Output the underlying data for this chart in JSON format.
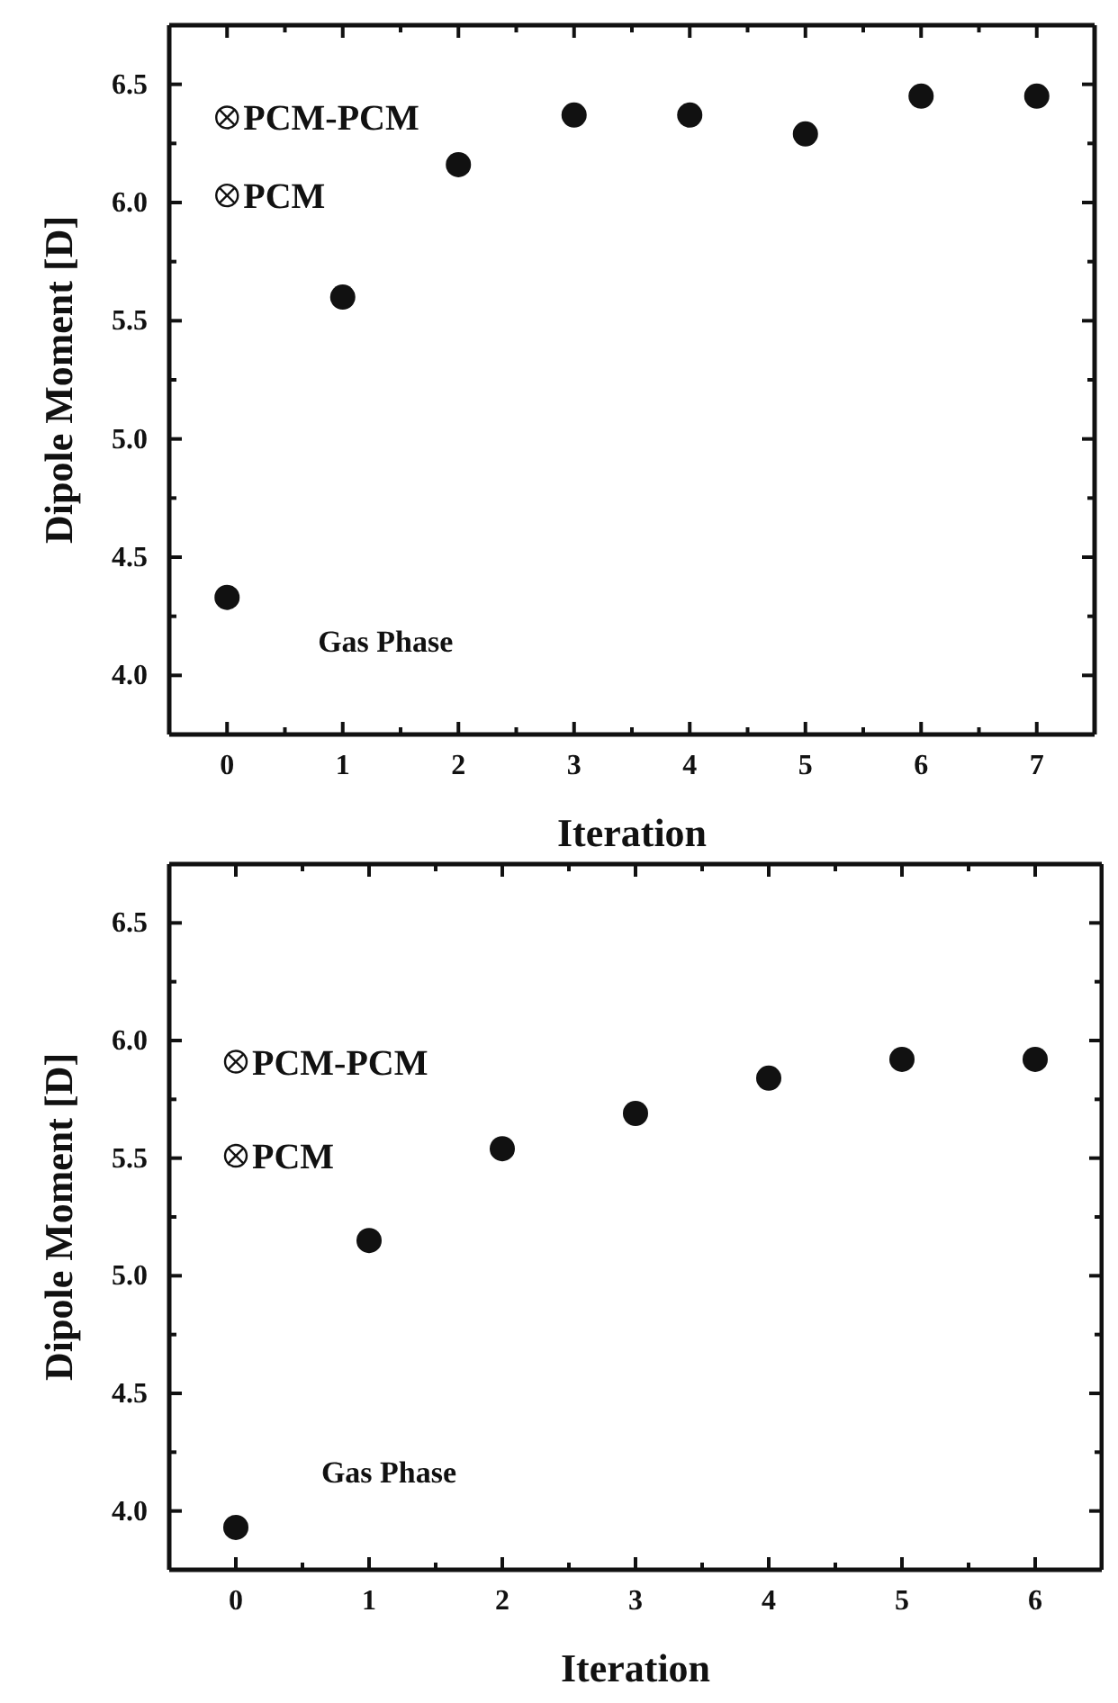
{
  "chart_data": [
    {
      "type": "scatter",
      "xlabel": "Iteration",
      "ylabel": "Dipole Moment [D]",
      "xlim": [
        -0.5,
        7.5
      ],
      "ylim": [
        3.75,
        6.75
      ],
      "xticks": [
        0,
        {
          "value": 0.5,
          "label": null
        },
        1,
        {
          "value": 1.5,
          "label": null
        },
        2,
        {
          "value": 2.5,
          "label": null
        },
        3,
        {
          "value": 3.5,
          "label": null
        },
        4,
        {
          "value": 4.5,
          "label": null
        },
        5,
        {
          "value": 5.5,
          "label": null
        },
        6,
        {
          "value": 6.5,
          "label": null
        },
        7
      ],
      "yticks": [
        {
          "value": 4,
          "label": "4.0"
        },
        {
          "value": 4.25,
          "label": null
        },
        4.5,
        {
          "value": 4.75,
          "label": null
        },
        {
          "value": 5,
          "label": "5.0"
        },
        {
          "value": 5.25,
          "label": null
        },
        5.5,
        {
          "value": 5.75,
          "label": null
        },
        {
          "value": 6,
          "label": "6.0"
        },
        {
          "value": 6.25,
          "label": null
        },
        6.5
      ],
      "series": [
        {
          "color": "#111111",
          "marker": "circle",
          "x": [
            0,
            1,
            2,
            3,
            4,
            5,
            6,
            7
          ],
          "values": [
            4.33,
            5.6,
            6.16,
            6.37,
            6.37,
            6.29,
            6.45,
            6.45
          ]
        },
        {
          "name": "PCM-PCM",
          "color": "#111111",
          "x": [
            0
          ],
          "values": [
            6.36
          ]
        },
        {
          "name": "PCM",
          "color": "#111111",
          "x": [
            0
          ],
          "values": [
            6.03
          ]
        }
      ],
      "annotations": [
        "Gas Phase"
      ],
      "legend": "top left"
    },
    {
      "type": "scatter",
      "xlabel": "Iteration",
      "ylabel": "Dipole Moment [D]",
      "xlim": [
        -0.5,
        6.5
      ],
      "ylim": [
        3.75,
        6.75
      ],
      "xticks": [
        0,
        {
          "value": 0.5,
          "label": null
        },
        1,
        {
          "value": 1.5,
          "label": null
        },
        2,
        {
          "value": 2.5,
          "label": null
        },
        3,
        {
          "value": 3.5,
          "label": null
        },
        4,
        {
          "value": 4.5,
          "label": null
        },
        5,
        {
          "value": 5.5,
          "label": null
        },
        6
      ],
      "yticks": [
        {
          "value": 4,
          "label": "4.0"
        },
        {
          "value": 4.25,
          "label": null
        },
        4.5,
        {
          "value": 4.75,
          "label": null
        },
        {
          "value": 5,
          "label": "5.0"
        },
        {
          "value": 5.25,
          "label": null
        },
        5.5,
        {
          "value": 5.75,
          "label": null
        },
        {
          "value": 6,
          "label": "6.0"
        },
        {
          "value": 6.25,
          "label": null
        },
        6.5
      ],
      "series": [
        {
          "color": "#111111",
          "marker": "circle",
          "x": [
            0,
            1,
            2,
            3,
            4,
            5,
            6
          ],
          "values": [
            3.93,
            5.15,
            5.54,
            5.69,
            5.84,
            5.92,
            5.92
          ]
        },
        {
          "name": "PCM-PCM",
          "color": "#111111",
          "x": [
            0
          ],
          "values": [
            5.91
          ]
        },
        {
          "name": "PCM",
          "color": "#111111",
          "x": [
            0
          ],
          "values": [
            5.51
          ]
        }
      ],
      "annotations": [
        "Gas Phase"
      ],
      "legend": "top left"
    }
  ]
}
